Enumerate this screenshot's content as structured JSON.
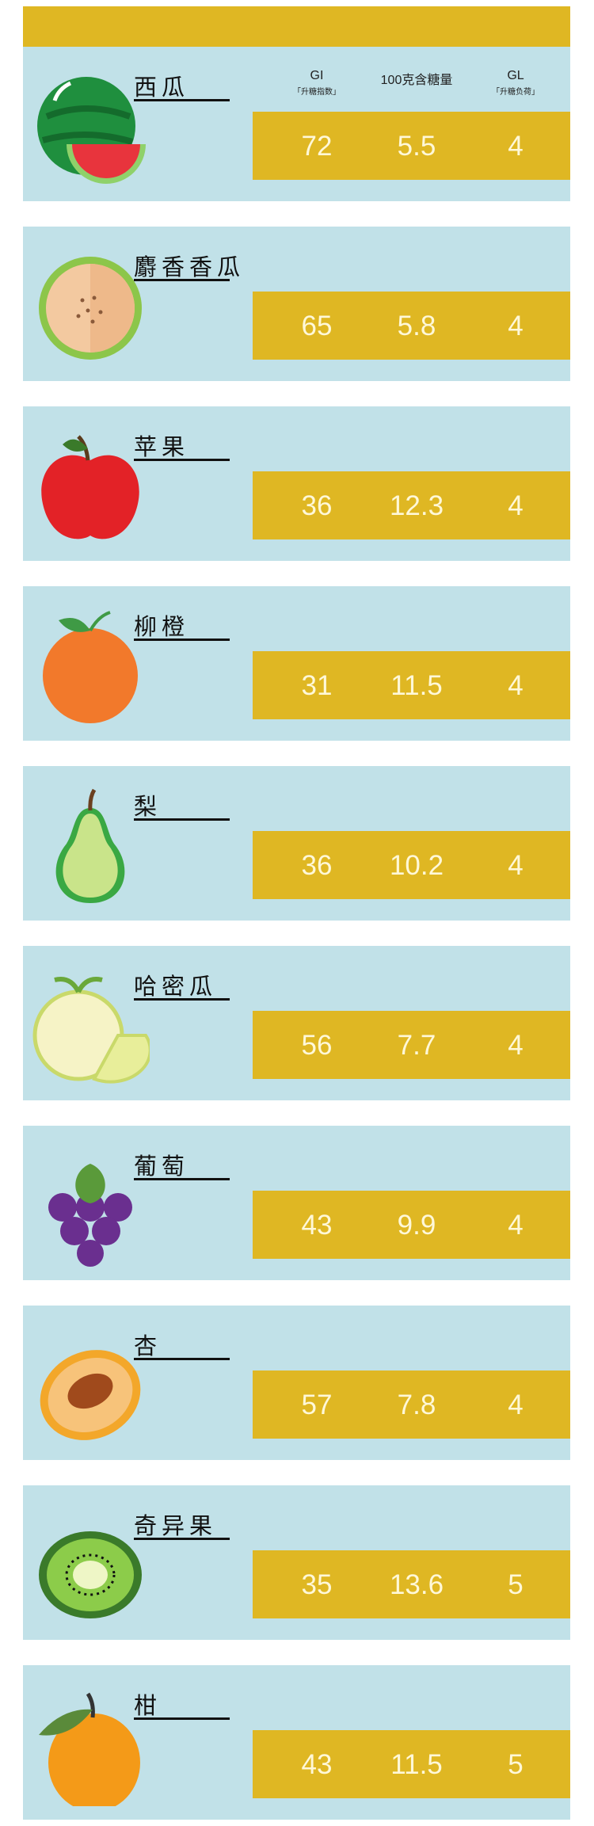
{
  "headers": {
    "gi": {
      "label": "GI",
      "sub": "「升糖指数」"
    },
    "sugar": {
      "label": "100克含糖量"
    },
    "gl": {
      "label": "GL",
      "sub": "「升糖负荷」"
    }
  },
  "colors": {
    "bar": "#dfb723",
    "card": "#c1e1e8",
    "value_text": "#fff8d8"
  },
  "fruits": [
    {
      "name": "西瓜",
      "icon": "watermelon-icon",
      "gi": "72",
      "sugar": "5.5",
      "gl": "4"
    },
    {
      "name": "麝香香瓜",
      "icon": "cantaloupe-icon",
      "gi": "65",
      "sugar": "5.8",
      "gl": "4"
    },
    {
      "name": "苹果",
      "icon": "apple-icon",
      "gi": "36",
      "sugar": "12.3",
      "gl": "4"
    },
    {
      "name": "柳橙",
      "icon": "orange-icon",
      "gi": "31",
      "sugar": "11.5",
      "gl": "4"
    },
    {
      "name": "梨",
      "icon": "pear-icon",
      "gi": "36",
      "sugar": "10.2",
      "gl": "4"
    },
    {
      "name": "哈密瓜",
      "icon": "hami-melon-icon",
      "gi": "56",
      "sugar": "7.7",
      "gl": "4"
    },
    {
      "name": "葡萄",
      "icon": "grape-icon",
      "gi": "43",
      "sugar": "9.9",
      "gl": "4"
    },
    {
      "name": "杏",
      "icon": "apricot-icon",
      "gi": "57",
      "sugar": "7.8",
      "gl": "4"
    },
    {
      "name": "奇异果",
      "icon": "kiwi-icon",
      "gi": "35",
      "sugar": "13.6",
      "gl": "5"
    },
    {
      "name": "柑",
      "icon": "tangerine-icon",
      "gi": "43",
      "sugar": "11.5",
      "gl": "5"
    }
  ]
}
